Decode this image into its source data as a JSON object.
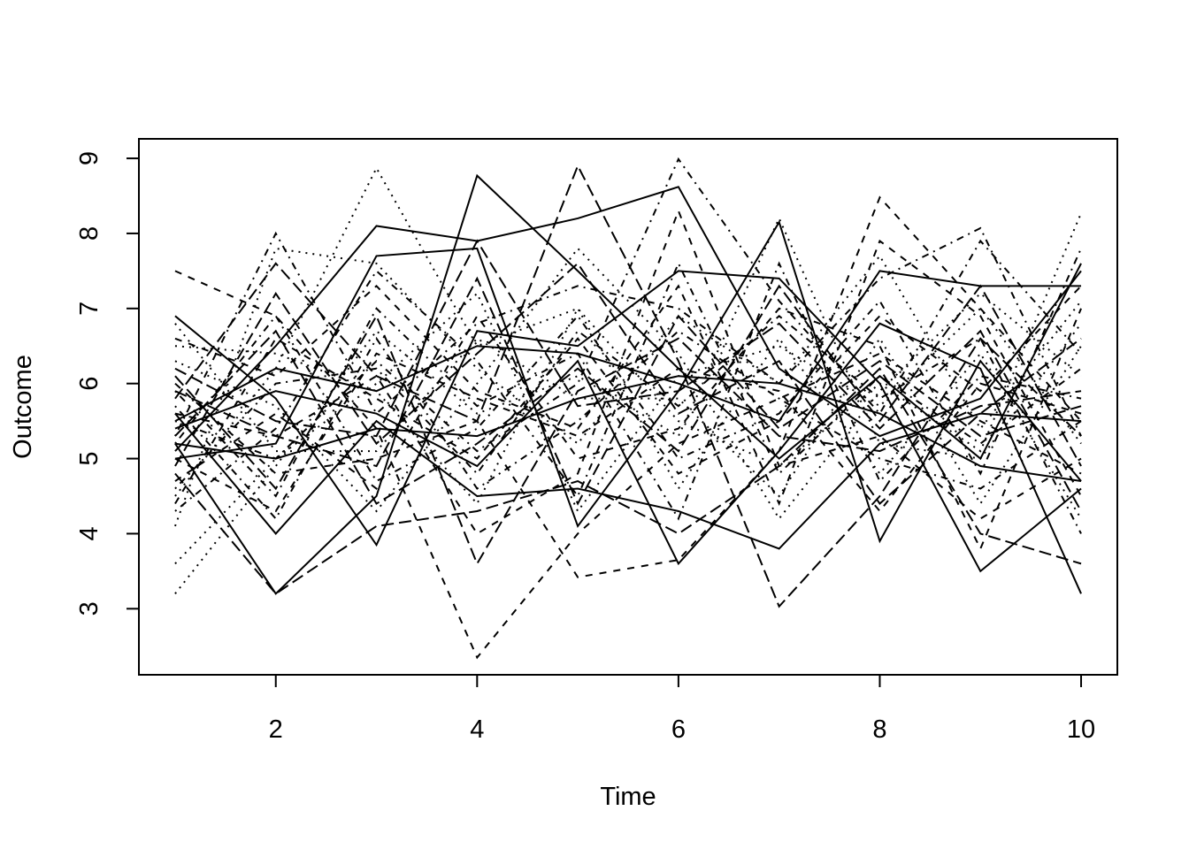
{
  "chart_data": {
    "type": "line",
    "xlabel": "Time",
    "ylabel": "Outcome",
    "x": [
      1,
      2,
      3,
      4,
      5,
      6,
      7,
      8,
      9,
      10
    ],
    "xlim": [
      0.64,
      10.36
    ],
    "ylim": [
      2.12,
      9.26
    ],
    "xticks": [
      2,
      4,
      6,
      8,
      10
    ],
    "yticks": [
      3,
      4,
      5,
      6,
      7,
      8,
      9
    ],
    "series": [
      {
        "color": "#000000",
        "dash": "solid",
        "values": [
          5.2,
          3.2,
          4.5,
          8.77,
          7.5,
          6.2,
          5.0,
          6.1,
          5.0,
          7.6
        ]
      },
      {
        "color": "#000000",
        "dash": "dashed",
        "values": [
          7.5,
          6.9,
          5.4,
          2.35,
          4.0,
          5.2,
          5.8,
          6.4,
          5.5,
          4.8
        ]
      },
      {
        "color": "#000000",
        "dash": "dotted",
        "values": [
          4.5,
          6.2,
          8.87,
          6.5,
          7.0,
          5.5,
          4.9,
          6.0,
          5.1,
          8.27
        ]
      },
      {
        "color": "#000000",
        "dash": "dotdash",
        "values": [
          5.5,
          5.0,
          6.3,
          5.1,
          6.0,
          8.99,
          7.1,
          5.6,
          7.9,
          6.4
        ]
      },
      {
        "color": "#000000",
        "dash": "longdash",
        "values": [
          5.8,
          7.6,
          6.1,
          5.5,
          8.9,
          6.3,
          3.03,
          4.5,
          6.6,
          5.3
        ]
      },
      {
        "color": "#000000",
        "dash": "solid",
        "values": [
          5.1,
          6.5,
          8.1,
          7.9,
          8.2,
          8.62,
          6.2,
          5.3,
          5.8,
          7.5
        ]
      },
      {
        "color": "#000000",
        "dash": "dashed",
        "values": [
          6.0,
          4.8,
          5.0,
          5.5,
          3.42,
          3.65,
          5.1,
          8.48,
          7.0,
          5.5
        ]
      },
      {
        "color": "#000000",
        "dash": "dotted",
        "values": [
          3.2,
          4.9,
          6.7,
          5.6,
          6.1,
          5.3,
          8.2,
          5.2,
          5.0,
          6.8
        ]
      },
      {
        "color": "#000000",
        "dash": "dotdash",
        "values": [
          5.3,
          8.0,
          5.6,
          6.8,
          7.3,
          7.0,
          6.0,
          7.4,
          8.07,
          5.3
        ]
      },
      {
        "color": "#000000",
        "dash": "longdash",
        "values": [
          4.8,
          3.2,
          4.1,
          4.3,
          4.7,
          4.0,
          4.9,
          6.2,
          4.0,
          3.6
        ]
      },
      {
        "color": "#000000",
        "dash": "solid",
        "values": [
          6.9,
          5.8,
          3.85,
          6.7,
          6.5,
          7.5,
          7.4,
          6.0,
          3.5,
          4.6
        ]
      },
      {
        "color": "#000000",
        "dash": "dashed",
        "values": [
          5.6,
          5.3,
          6.1,
          4.0,
          4.8,
          8.3,
          4.9,
          5.3,
          4.2,
          5.0
        ]
      },
      {
        "color": "#000000",
        "dash": "dotted",
        "values": [
          4.1,
          7.8,
          7.6,
          6.2,
          5.2,
          6.9,
          6.0,
          7.7,
          5.4,
          7.1
        ]
      },
      {
        "color": "#000000",
        "dash": "dotdash",
        "values": [
          5.9,
          4.5,
          7.0,
          5.7,
          6.4,
          4.2,
          7.6,
          4.7,
          6.1,
          5.8
        ]
      },
      {
        "color": "#000000",
        "dash": "longdash",
        "values": [
          6.2,
          5.5,
          5.3,
          7.9,
          5.7,
          5.9,
          6.8,
          5.4,
          6.7,
          4.3
        ]
      },
      {
        "color": "#000000",
        "dash": "solid",
        "values": [
          5.0,
          5.2,
          7.7,
          7.8,
          4.1,
          5.9,
          8.15,
          3.9,
          6.3,
          4.7
        ]
      },
      {
        "color": "#000000",
        "dash": "dashed",
        "values": [
          4.4,
          6.6,
          5.8,
          5.0,
          6.6,
          4.8,
          5.5,
          6.9,
          5.9,
          7.3
        ]
      },
      {
        "color": "#000000",
        "dash": "dotted",
        "values": [
          6.3,
          5.7,
          4.3,
          6.0,
          7.8,
          6.4,
          4.2,
          5.9,
          7.2,
          6.1
        ]
      },
      {
        "color": "#000000",
        "dash": "dotdash",
        "values": [
          5.7,
          4.2,
          6.6,
          4.6,
          5.5,
          6.7,
          5.8,
          5.0,
          4.6,
          5.5
        ]
      },
      {
        "color": "#000000",
        "dash": "longdash",
        "values": [
          4.9,
          7.2,
          5.2,
          6.4,
          7.6,
          5.6,
          6.3,
          4.4,
          5.6,
          6.6
        ]
      },
      {
        "color": "#000000",
        "dash": "solid",
        "values": [
          5.4,
          5.9,
          5.6,
          4.9,
          6.3,
          3.6,
          5.1,
          6.8,
          6.2,
          3.2
        ]
      },
      {
        "color": "#000000",
        "dash": "dashed",
        "values": [
          6.6,
          6.1,
          7.3,
          5.9,
          5.4,
          7.3,
          4.4,
          7.9,
          6.9,
          4.5
        ]
      },
      {
        "color": "#000000",
        "dash": "dotted",
        "values": [
          3.6,
          5.0,
          6.0,
          7.2,
          4.3,
          6.1,
          6.5,
          5.7,
          7.0,
          5.2
        ]
      },
      {
        "color": "#000000",
        "dash": "dotdash",
        "values": [
          5.2,
          6.9,
          4.7,
          5.4,
          6.9,
          5.0,
          5.6,
          7.1,
          4.8,
          7.8
        ]
      },
      {
        "color": "#000000",
        "dash": "longdash",
        "values": [
          6.1,
          4.6,
          6.9,
          3.6,
          5.9,
          6.6,
          5.3,
          5.1,
          5.7,
          5.9
        ]
      },
      {
        "color": "#000000",
        "dash": "solid",
        "values": [
          5.6,
          4.0,
          5.5,
          4.5,
          4.6,
          4.3,
          3.8,
          5.2,
          5.6,
          5.5
        ]
      },
      {
        "color": "#000000",
        "dash": "dashed",
        "values": [
          4.7,
          5.6,
          4.6,
          6.9,
          5.0,
          5.4,
          7.0,
          6.5,
          3.8,
          7.0
        ]
      },
      {
        "color": "#000000",
        "dash": "dotted",
        "values": [
          6.5,
          6.4,
          5.9,
          4.4,
          7.0,
          4.6,
          6.6,
          4.8,
          6.4,
          4.2
        ]
      },
      {
        "color": "#000000",
        "dash": "dotdash",
        "values": [
          4.3,
          5.4,
          7.5,
          6.3,
          4.5,
          7.6,
          4.8,
          6.1,
          5.2,
          6.2
        ]
      },
      {
        "color": "#000000",
        "dash": "longdash",
        "values": [
          5.3,
          6.7,
          4.4,
          5.2,
          6.2,
          5.1,
          7.3,
          5.5,
          7.3,
          4.9
        ]
      },
      {
        "color": "#000000",
        "dash": "solid",
        "values": [
          5.5,
          6.2,
          5.9,
          6.5,
          6.4,
          6.0,
          5.5,
          7.5,
          7.3,
          7.3
        ]
      },
      {
        "color": "#000000",
        "dash": "dashed",
        "values": [
          5.0,
          4.3,
          6.4,
          5.8,
          5.3,
          6.2,
          5.9,
          4.3,
          6.0,
          5.6
        ]
      },
      {
        "color": "#000000",
        "dash": "dotted",
        "values": [
          6.8,
          5.1,
          5.1,
          6.6,
          5.8,
          5.8,
          4.5,
          6.6,
          4.4,
          6.5
        ]
      },
      {
        "color": "#000000",
        "dash": "dotdash",
        "values": [
          4.6,
          6.0,
          6.2,
          4.8,
          6.7,
          5.7,
          6.9,
          5.8,
          6.6,
          4.0
        ]
      },
      {
        "color": "#000000",
        "dash": "longdash",
        "values": [
          5.9,
          5.3,
          4.9,
          7.4,
          4.4,
          6.9,
          5.4,
          6.3,
          5.3,
          5.7
        ]
      },
      {
        "color": "#000000",
        "dash": "solid",
        "values": [
          5.2,
          5.0,
          5.4,
          5.3,
          5.8,
          6.1,
          6.0,
          5.6,
          4.9,
          4.7
        ]
      }
    ]
  }
}
